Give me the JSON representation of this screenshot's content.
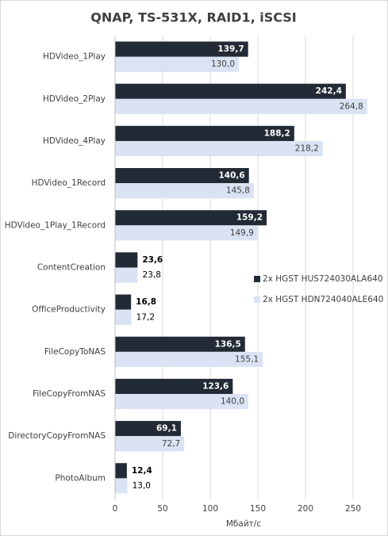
{
  "chart_data": {
    "type": "bar",
    "orientation": "horizontal",
    "title": "QNAP, TS-531X, RAID1, iSCSI",
    "x_label": "Мбайт/с",
    "categories": [
      "HDVideo_1Play",
      "HDVideo_2Play",
      "HDVideo_4Play",
      "HDVideo_1Record",
      "HDVideo_1Play_1Record",
      "ContentCreation",
      "OfficeProductivity",
      "FileCopyToNAS",
      "FileCopyFromNAS",
      "DirectoryCopyFromNAS",
      "PhotoAlbum"
    ],
    "series": [
      {
        "name": "2x HGST HUS724030ALA640",
        "color": "#222a35",
        "values": [
          139.7,
          242.4,
          188.2,
          140.6,
          159.2,
          23.6,
          16.8,
          136.5,
          123.6,
          69.1,
          12.4
        ],
        "value_labels": [
          "139,7",
          "242,4",
          "188,2",
          "140,6",
          "159,2",
          "23,6",
          "16,8",
          "136,5",
          "123,6",
          "69,1",
          "12,4"
        ]
      },
      {
        "name": "2x HGST HDN724040ALE640",
        "color": "#dae3f3",
        "values": [
          130.0,
          264.8,
          218.2,
          145.8,
          149.9,
          23.8,
          17.2,
          155.1,
          140.0,
          72.7,
          13.0
        ],
        "value_labels": [
          "130,0",
          "264,8",
          "218,2",
          "145,8",
          "149,9",
          "23,8",
          "17,2",
          "155,1",
          "140,0",
          "72,7",
          "13,0"
        ]
      }
    ],
    "xlim": [
      0,
      270
    ],
    "xticks": [
      0,
      50,
      100,
      150,
      200,
      250
    ],
    "grid": true,
    "legend": "right"
  }
}
